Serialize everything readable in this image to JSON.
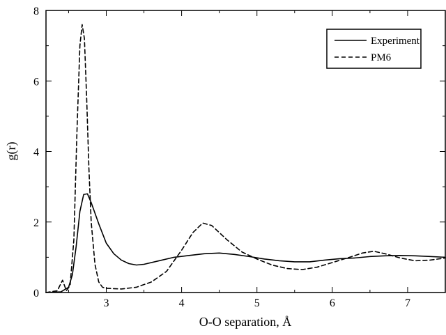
{
  "chart_data": {
    "type": "line",
    "title": "",
    "xlabel": "O-O separation, Å",
    "ylabel": "g(r)",
    "xlim": [
      2.2,
      7.5
    ],
    "ylim": [
      0,
      8
    ],
    "x_ticks": [
      3,
      4,
      5,
      6,
      7
    ],
    "y_ticks": [
      0,
      2,
      4,
      6,
      8
    ],
    "x_tick_labels": [
      "3",
      "4",
      "5",
      "6",
      "7"
    ],
    "y_tick_labels": [
      "0",
      "2",
      "4",
      "6",
      "8"
    ],
    "grid": false,
    "legend_position": "top-right",
    "series": [
      {
        "name": "Experiment",
        "line_style": "solid",
        "color": "#000000",
        "points": [
          [
            2.2,
            0.0
          ],
          [
            2.4,
            0.02
          ],
          [
            2.5,
            0.15
          ],
          [
            2.55,
            0.5
          ],
          [
            2.6,
            1.3
          ],
          [
            2.65,
            2.3
          ],
          [
            2.7,
            2.78
          ],
          [
            2.75,
            2.8
          ],
          [
            2.8,
            2.55
          ],
          [
            2.9,
            1.95
          ],
          [
            3.0,
            1.4
          ],
          [
            3.1,
            1.1
          ],
          [
            3.2,
            0.92
          ],
          [
            3.3,
            0.82
          ],
          [
            3.4,
            0.78
          ],
          [
            3.5,
            0.8
          ],
          [
            3.7,
            0.9
          ],
          [
            3.9,
            1.0
          ],
          [
            4.1,
            1.05
          ],
          [
            4.3,
            1.1
          ],
          [
            4.5,
            1.12
          ],
          [
            4.7,
            1.08
          ],
          [
            4.9,
            1.02
          ],
          [
            5.1,
            0.95
          ],
          [
            5.3,
            0.9
          ],
          [
            5.5,
            0.87
          ],
          [
            5.7,
            0.87
          ],
          [
            5.9,
            0.92
          ],
          [
            6.1,
            0.96
          ],
          [
            6.3,
            0.98
          ],
          [
            6.5,
            1.02
          ],
          [
            6.7,
            1.04
          ],
          [
            6.9,
            1.05
          ],
          [
            7.1,
            1.04
          ],
          [
            7.3,
            1.02
          ],
          [
            7.5,
            1.0
          ]
        ]
      },
      {
        "name": "PM6",
        "line_style": "dashed",
        "color": "#000000",
        "points": [
          [
            2.2,
            0.0
          ],
          [
            2.35,
            0.05
          ],
          [
            2.42,
            0.35
          ],
          [
            2.47,
            0.05
          ],
          [
            2.52,
            0.2
          ],
          [
            2.57,
            1.5
          ],
          [
            2.61,
            4.5
          ],
          [
            2.65,
            7.0
          ],
          [
            2.68,
            7.6
          ],
          [
            2.71,
            7.2
          ],
          [
            2.74,
            5.5
          ],
          [
            2.77,
            3.5
          ],
          [
            2.8,
            2.0
          ],
          [
            2.85,
            0.8
          ],
          [
            2.9,
            0.3
          ],
          [
            2.95,
            0.15
          ],
          [
            3.0,
            0.12
          ],
          [
            3.2,
            0.1
          ],
          [
            3.4,
            0.15
          ],
          [
            3.6,
            0.3
          ],
          [
            3.8,
            0.6
          ],
          [
            4.0,
            1.2
          ],
          [
            4.15,
            1.7
          ],
          [
            4.28,
            1.97
          ],
          [
            4.4,
            1.9
          ],
          [
            4.6,
            1.5
          ],
          [
            4.8,
            1.15
          ],
          [
            5.0,
            0.95
          ],
          [
            5.2,
            0.78
          ],
          [
            5.4,
            0.68
          ],
          [
            5.6,
            0.65
          ],
          [
            5.8,
            0.72
          ],
          [
            6.0,
            0.85
          ],
          [
            6.2,
            0.98
          ],
          [
            6.4,
            1.12
          ],
          [
            6.55,
            1.17
          ],
          [
            6.7,
            1.1
          ],
          [
            6.9,
            0.98
          ],
          [
            7.1,
            0.9
          ],
          [
            7.3,
            0.92
          ],
          [
            7.5,
            0.98
          ]
        ]
      }
    ]
  }
}
